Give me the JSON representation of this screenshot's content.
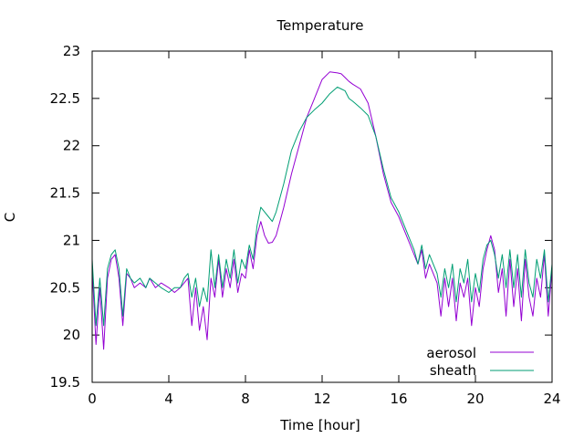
{
  "chart_data": {
    "type": "line",
    "title": "Temperature",
    "xlabel": "Time [hour]",
    "ylabel": "C",
    "xlim": [
      0,
      24
    ],
    "ylim": [
      19.5,
      23
    ],
    "xticks": [
      0,
      4,
      8,
      12,
      16,
      20,
      24
    ],
    "yticks": [
      19.5,
      20,
      20.5,
      21,
      21.5,
      22,
      22.5,
      23
    ],
    "xtick_labels": [
      "0",
      "4",
      "8",
      "12",
      "16",
      "20",
      "24"
    ],
    "ytick_labels": [
      "19.5",
      "20",
      "20.5",
      "21",
      "21.5",
      "22",
      "22.5",
      "23"
    ],
    "grid": false,
    "legend": "bottom-right",
    "series": [
      {
        "name": "aerosol",
        "color": "#9400d3",
        "x": [
          0.0,
          0.2,
          0.4,
          0.6,
          0.8,
          1.0,
          1.2,
          1.4,
          1.6,
          1.8,
          2.0,
          2.2,
          2.5,
          2.8,
          3.0,
          3.3,
          3.6,
          4.0,
          4.3,
          4.6,
          4.8,
          5.0,
          5.2,
          5.4,
          5.6,
          5.8,
          6.0,
          6.2,
          6.4,
          6.6,
          6.8,
          7.0,
          7.2,
          7.4,
          7.6,
          7.8,
          8.0,
          8.2,
          8.4,
          8.6,
          8.8,
          9.0,
          9.2,
          9.4,
          9.6,
          9.8,
          10.0,
          10.4,
          10.8,
          11.2,
          11.6,
          12.0,
          12.4,
          12.8,
          13.0,
          13.2,
          13.4,
          13.6,
          14.0,
          14.4,
          14.8,
          15.2,
          15.6,
          16.0,
          16.4,
          16.8,
          17.0,
          17.2,
          17.4,
          17.6,
          17.8,
          18.0,
          18.2,
          18.4,
          18.6,
          18.8,
          19.0,
          19.2,
          19.4,
          19.6,
          19.8,
          20.0,
          20.2,
          20.4,
          20.6,
          20.8,
          21.0,
          21.2,
          21.4,
          21.6,
          21.8,
          22.0,
          22.2,
          22.4,
          22.6,
          22.8,
          23.0,
          23.2,
          23.4,
          23.6,
          23.8,
          24.0
        ],
        "y": [
          20.7,
          19.9,
          20.5,
          19.85,
          20.6,
          20.8,
          20.85,
          20.6,
          20.1,
          20.65,
          20.6,
          20.5,
          20.55,
          20.5,
          20.6,
          20.5,
          20.55,
          20.5,
          20.45,
          20.5,
          20.55,
          20.6,
          20.1,
          20.5,
          20.05,
          20.3,
          19.95,
          20.6,
          20.4,
          20.8,
          20.4,
          20.7,
          20.5,
          20.8,
          20.45,
          20.65,
          20.6,
          20.9,
          20.7,
          21.05,
          21.2,
          21.05,
          20.97,
          20.98,
          21.05,
          21.2,
          21.35,
          21.7,
          22.0,
          22.3,
          22.5,
          22.7,
          22.78,
          22.77,
          22.76,
          22.72,
          22.68,
          22.65,
          22.6,
          22.45,
          22.1,
          21.7,
          21.4,
          21.25,
          21.05,
          20.85,
          20.75,
          20.9,
          20.6,
          20.75,
          20.65,
          20.55,
          20.2,
          20.6,
          20.3,
          20.6,
          20.15,
          20.55,
          20.4,
          20.6,
          20.1,
          20.5,
          20.3,
          20.7,
          20.9,
          21.05,
          20.9,
          20.45,
          20.7,
          20.2,
          20.8,
          20.3,
          20.7,
          20.15,
          20.8,
          20.4,
          20.2,
          20.6,
          20.4,
          20.85,
          20.2,
          20.7
        ]
      },
      {
        "name": "sheath",
        "color": "#009e73",
        "x": [
          0.0,
          0.2,
          0.4,
          0.6,
          0.8,
          1.0,
          1.2,
          1.4,
          1.6,
          1.8,
          2.0,
          2.2,
          2.5,
          2.8,
          3.0,
          3.3,
          3.6,
          4.0,
          4.3,
          4.6,
          4.8,
          5.0,
          5.2,
          5.4,
          5.6,
          5.8,
          6.0,
          6.2,
          6.4,
          6.6,
          6.8,
          7.0,
          7.2,
          7.4,
          7.6,
          7.8,
          8.0,
          8.2,
          8.4,
          8.6,
          8.8,
          9.0,
          9.2,
          9.4,
          9.6,
          9.8,
          10.0,
          10.4,
          10.8,
          11.2,
          11.6,
          12.0,
          12.4,
          12.8,
          13.0,
          13.2,
          13.4,
          13.6,
          14.0,
          14.4,
          14.8,
          15.2,
          15.6,
          16.0,
          16.4,
          16.8,
          17.0,
          17.2,
          17.4,
          17.6,
          17.8,
          18.0,
          18.2,
          18.4,
          18.6,
          18.8,
          19.0,
          19.2,
          19.4,
          19.6,
          19.8,
          20.0,
          20.2,
          20.4,
          20.6,
          20.8,
          21.0,
          21.2,
          21.4,
          21.6,
          21.8,
          22.0,
          22.2,
          22.4,
          22.6,
          22.8,
          23.0,
          23.2,
          23.4,
          23.6,
          23.8,
          24.0
        ],
        "y": [
          20.8,
          20.1,
          20.6,
          20.1,
          20.7,
          20.85,
          20.9,
          20.7,
          20.2,
          20.7,
          20.6,
          20.55,
          20.6,
          20.5,
          20.6,
          20.55,
          20.5,
          20.45,
          20.5,
          20.5,
          20.6,
          20.65,
          20.4,
          20.6,
          20.3,
          20.5,
          20.35,
          20.9,
          20.5,
          20.85,
          20.5,
          20.8,
          20.6,
          20.9,
          20.55,
          20.8,
          20.7,
          20.95,
          20.8,
          21.15,
          21.35,
          21.3,
          21.25,
          21.2,
          21.3,
          21.45,
          21.6,
          21.95,
          22.15,
          22.3,
          22.38,
          22.45,
          22.55,
          22.62,
          22.6,
          22.58,
          22.5,
          22.47,
          22.4,
          22.32,
          22.1,
          21.75,
          21.45,
          21.3,
          21.1,
          20.9,
          20.75,
          20.95,
          20.7,
          20.85,
          20.75,
          20.65,
          20.4,
          20.7,
          20.5,
          20.75,
          20.35,
          20.7,
          20.55,
          20.8,
          20.35,
          20.65,
          20.45,
          20.8,
          20.95,
          21.0,
          20.85,
          20.6,
          20.85,
          20.5,
          20.9,
          20.5,
          20.85,
          20.4,
          20.9,
          20.55,
          20.4,
          20.8,
          20.6,
          20.9,
          20.35,
          20.75
        ]
      }
    ]
  }
}
